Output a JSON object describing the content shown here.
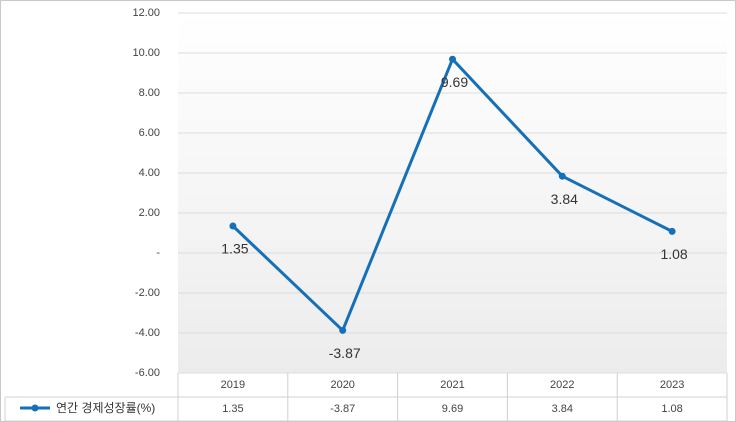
{
  "chart_data": {
    "type": "line",
    "categories": [
      "2019",
      "2020",
      "2021",
      "2022",
      "2023"
    ],
    "series": [
      {
        "name": "연간 경제성장률(%)",
        "color": "#1570b8",
        "values": [
          1.35,
          -3.87,
          9.69,
          3.84,
          1.08
        ]
      }
    ],
    "ylim": [
      -6,
      12
    ],
    "yticks": [
      {
        "value": -6,
        "label": "-6.00"
      },
      {
        "value": -4,
        "label": "-4.00"
      },
      {
        "value": -2,
        "label": "-2.00"
      },
      {
        "value": 0,
        "label": "-"
      },
      {
        "value": 2,
        "label": "2.00"
      },
      {
        "value": 4,
        "label": "4.00"
      },
      {
        "value": 6,
        "label": "6.00"
      },
      {
        "value": 8,
        "label": "8.00"
      },
      {
        "value": 10,
        "label": "10.00"
      },
      {
        "value": 12,
        "label": "12.00"
      }
    ],
    "grid": true
  }
}
